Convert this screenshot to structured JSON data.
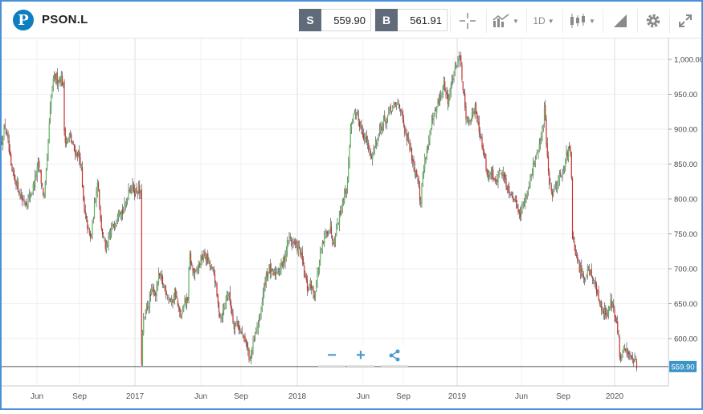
{
  "header": {
    "symbol": "PSON.L",
    "sell_tag": "S",
    "sell_price": "559.90",
    "buy_tag": "B",
    "buy_price": "561.91",
    "timeframe": "1D",
    "icons": [
      "crosshair-icon",
      "chart-type-icon",
      "candlestick-icon",
      "drawing-icon",
      "gear-icon",
      "expand-icon"
    ]
  },
  "chart_data": {
    "type": "candlestick",
    "instrument": "PSON.L",
    "y_ticks": [
      "1,000.00",
      "950.00",
      "900.00",
      "850.00",
      "800.00",
      "750.00",
      "700.00",
      "650.00",
      "600.00"
    ],
    "ylim": [
      520,
      1030
    ],
    "x_ticks": [
      "Jun",
      "Sep",
      "2017",
      "Jun",
      "Sep",
      "2018",
      "Jun",
      "Sep",
      "2019",
      "Jun",
      "Sep",
      "2020"
    ],
    "current_price_label": "559.90",
    "current_price": 559.9,
    "up_color": "#5cb85c",
    "down_color": "#c9302c",
    "path": [
      [
        0,
        880
      ],
      [
        4,
        905
      ],
      [
        8,
        880
      ],
      [
        12,
        840
      ],
      [
        18,
        825
      ],
      [
        25,
        800
      ],
      [
        32,
        795
      ],
      [
        40,
        820
      ],
      [
        46,
        850
      ],
      [
        50,
        820
      ],
      [
        53,
        800
      ],
      [
        57,
        860
      ],
      [
        60,
        920
      ],
      [
        63,
        960
      ],
      [
        66,
        975
      ],
      [
        70,
        970
      ],
      [
        74,
        975
      ],
      [
        77,
        960
      ],
      [
        78,
        900
      ],
      [
        80,
        880
      ],
      [
        85,
        890
      ],
      [
        90,
        870
      ],
      [
        95,
        865
      ],
      [
        99,
        850
      ],
      [
        100,
        820
      ],
      [
        103,
        780
      ],
      [
        107,
        760
      ],
      [
        111,
        740
      ],
      [
        114,
        775
      ],
      [
        117,
        805
      ],
      [
        120,
        830
      ],
      [
        123,
        770
      ],
      [
        127,
        740
      ],
      [
        131,
        725
      ],
      [
        134,
        745
      ],
      [
        138,
        760
      ],
      [
        142,
        770
      ],
      [
        146,
        790
      ],
      [
        150,
        780
      ],
      [
        154,
        790
      ],
      [
        158,
        815
      ],
      [
        162,
        820
      ],
      [
        166,
        810
      ],
      [
        170,
        815
      ],
      [
        173,
        805
      ],
      [
        174,
        560
      ],
      [
        176,
        620
      ],
      [
        180,
        640
      ],
      [
        184,
        655
      ],
      [
        188,
        670
      ],
      [
        192,
        665
      ],
      [
        196,
        690
      ],
      [
        200,
        680
      ],
      [
        204,
        670
      ],
      [
        208,
        660
      ],
      [
        212,
        650
      ],
      [
        216,
        670
      ],
      [
        220,
        640
      ],
      [
        224,
        630
      ],
      [
        228,
        650
      ],
      [
        232,
        660
      ],
      [
        234,
        720
      ],
      [
        237,
        700
      ],
      [
        241,
        690
      ],
      [
        245,
        705
      ],
      [
        249,
        715
      ],
      [
        253,
        720
      ],
      [
        257,
        710
      ],
      [
        261,
        700
      ],
      [
        265,
        690
      ],
      [
        269,
        650
      ],
      [
        273,
        630
      ],
      [
        277,
        645
      ],
      [
        281,
        670
      ],
      [
        285,
        650
      ],
      [
        289,
        620
      ],
      [
        293,
        625
      ],
      [
        297,
        610
      ],
      [
        301,
        600
      ],
      [
        305,
        590
      ],
      [
        309,
        570
      ],
      [
        313,
        590
      ],
      [
        317,
        610
      ],
      [
        321,
        630
      ],
      [
        325,
        660
      ],
      [
        329,
        690
      ],
      [
        333,
        700
      ],
      [
        337,
        690
      ],
      [
        341,
        695
      ],
      [
        345,
        700
      ],
      [
        349,
        705
      ],
      [
        353,
        720
      ],
      [
        357,
        745
      ],
      [
        361,
        740
      ],
      [
        365,
        735
      ],
      [
        369,
        730
      ],
      [
        373,
        720
      ],
      [
        377,
        690
      ],
      [
        381,
        670
      ],
      [
        385,
        680
      ],
      [
        389,
        660
      ],
      [
        393,
        690
      ],
      [
        397,
        720
      ],
      [
        401,
        740
      ],
      [
        405,
        755
      ],
      [
        409,
        760
      ],
      [
        413,
        740
      ],
      [
        417,
        760
      ],
      [
        421,
        780
      ],
      [
        425,
        800
      ],
      [
        429,
        815
      ],
      [
        431,
        830
      ],
      [
        433,
        880
      ],
      [
        435,
        910
      ],
      [
        439,
        920
      ],
      [
        443,
        915
      ],
      [
        447,
        905
      ],
      [
        451,
        890
      ],
      [
        455,
        880
      ],
      [
        459,
        860
      ],
      [
        463,
        870
      ],
      [
        467,
        885
      ],
      [
        471,
        900
      ],
      [
        475,
        910
      ],
      [
        479,
        915
      ],
      [
        483,
        925
      ],
      [
        487,
        930
      ],
      [
        491,
        935
      ],
      [
        495,
        940
      ],
      [
        499,
        910
      ],
      [
        503,
        890
      ],
      [
        507,
        880
      ],
      [
        511,
        860
      ],
      [
        515,
        840
      ],
      [
        519,
        830
      ],
      [
        521,
        780
      ],
      [
        523,
        820
      ],
      [
        527,
        860
      ],
      [
        531,
        880
      ],
      [
        535,
        905
      ],
      [
        539,
        920
      ],
      [
        543,
        935
      ],
      [
        547,
        950
      ],
      [
        551,
        965
      ],
      [
        555,
        940
      ],
      [
        559,
        960
      ],
      [
        563,
        980
      ],
      [
        567,
        990
      ],
      [
        570,
        1015
      ],
      [
        572,
        990
      ],
      [
        574,
        960
      ],
      [
        578,
        920
      ],
      [
        582,
        910
      ],
      [
        586,
        920
      ],
      [
        590,
        930
      ],
      [
        594,
        905
      ],
      [
        598,
        880
      ],
      [
        602,
        850
      ],
      [
        606,
        830
      ],
      [
        610,
        840
      ],
      [
        614,
        820
      ],
      [
        618,
        835
      ],
      [
        622,
        840
      ],
      [
        626,
        830
      ],
      [
        630,
        815
      ],
      [
        634,
        810
      ],
      [
        638,
        800
      ],
      [
        642,
        790
      ],
      [
        646,
        780
      ],
      [
        650,
        795
      ],
      [
        654,
        810
      ],
      [
        658,
        830
      ],
      [
        662,
        850
      ],
      [
        666,
        860
      ],
      [
        670,
        880
      ],
      [
        674,
        900
      ],
      [
        676,
        940
      ],
      [
        678,
        880
      ],
      [
        682,
        820
      ],
      [
        686,
        810
      ],
      [
        690,
        820
      ],
      [
        694,
        830
      ],
      [
        698,
        840
      ],
      [
        702,
        860
      ],
      [
        706,
        870
      ],
      [
        709,
        860
      ],
      [
        710,
        750
      ],
      [
        714,
        720
      ],
      [
        718,
        705
      ],
      [
        722,
        690
      ],
      [
        726,
        690
      ],
      [
        730,
        700
      ],
      [
        734,
        695
      ],
      [
        738,
        680
      ],
      [
        742,
        660
      ],
      [
        746,
        645
      ],
      [
        750,
        640
      ],
      [
        754,
        635
      ],
      [
        758,
        655
      ],
      [
        762,
        640
      ],
      [
        765,
        620
      ],
      [
        768,
        600
      ],
      [
        770,
        560
      ],
      [
        772,
        580
      ],
      [
        776,
        585
      ],
      [
        780,
        580
      ],
      [
        784,
        575
      ],
      [
        788,
        570
      ],
      [
        791,
        560
      ]
    ]
  }
}
